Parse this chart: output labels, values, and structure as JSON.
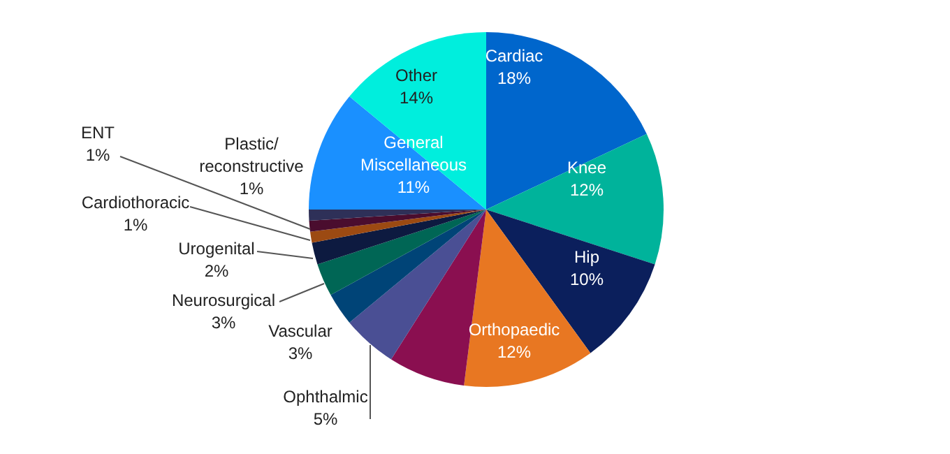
{
  "chart_data": {
    "type": "pie",
    "categories": [
      "Cardiac",
      "Knee",
      "Hip",
      "Orthopaedic",
      null,
      "Ophthalmic",
      "Vascular",
      "Neurosurgical",
      "Urogenital",
      "Cardiothoracic",
      "ENT",
      "Plastic/ reconstructive",
      "General Miscellaneous",
      "Other"
    ],
    "values": [
      18,
      12,
      10,
      12,
      7,
      5,
      3,
      3,
      2,
      1,
      1,
      1,
      11,
      14
    ],
    "value_labels": [
      "18%",
      "12%",
      "10%",
      "12%",
      null,
      "5%",
      "3%",
      "3%",
      "2%",
      "1%",
      "1%",
      "1%",
      "11%",
      "14%"
    ],
    "colors": [
      "#0066cc",
      "#00b39b",
      "#0b1f5c",
      "#e87722",
      "#8a0f50",
      "#4a4f94",
      "#004477",
      "#006655",
      "#0d1a40",
      "#9c4a12",
      "#4a0d2e",
      "#2e3058",
      "#1a90ff",
      "#00eedd"
    ],
    "legend": false
  }
}
